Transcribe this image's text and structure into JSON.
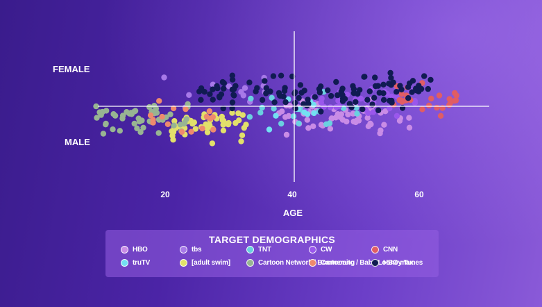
{
  "chart_data": {
    "type": "scatter",
    "title": "",
    "xlabel": "AGE",
    "y_categories": [
      "FEMALE",
      "MALE"
    ],
    "xlim": [
      7,
      69
    ],
    "x_ticks": [
      20,
      40,
      60
    ],
    "grid": false,
    "legend_position": "bottom-center",
    "legend_title": "TARGET DEMOGRAPHICS",
    "series": [
      {
        "name": "HBO",
        "color": "#c98ce6",
        "x_range": [
          37,
          59
        ],
        "y_center": -0.25,
        "count": 70
      },
      {
        "name": "tbs",
        "color": "#a779e8",
        "x_range": [
          18,
          36
        ],
        "y_center": 0.35,
        "count": 12
      },
      {
        "name": "TNT",
        "color": "#6ad0e0",
        "x_range": [
          33,
          52
        ],
        "y_center": -0.05,
        "count": 18
      },
      {
        "name": "CW",
        "color": "#9a57ec",
        "x_range": [
          42,
          60
        ],
        "y_center": 0.15,
        "count": 35
      },
      {
        "name": "CNN",
        "color": "#e05d64",
        "x_range": [
          55,
          66
        ],
        "y_center": 0.1,
        "count": 26
      },
      {
        "name": "truTV",
        "color": "#73e0f2",
        "x_range": [
          34,
          44
        ],
        "y_center": -0.1,
        "count": 10
      },
      {
        "name": "[adult swim]",
        "color": "#e2e06a",
        "x_range": [
          21,
          33
        ],
        "y_center": -0.4,
        "count": 50
      },
      {
        "name": "Cartoon Network / Boomerang",
        "color": "#98b592",
        "x_range": [
          9,
          24
        ],
        "y_center": -0.3,
        "count": 50
      },
      {
        "name": "Cartoonito / Baby Looney Tunes",
        "color": "#ee8a6e",
        "x_range": [
          16,
          28
        ],
        "y_center": -0.3,
        "count": 16
      },
      {
        "name": "HBO max",
        "color": "#101b52",
        "x_range": [
          24,
          62
        ],
        "y_center": 0.35,
        "count": 120
      }
    ]
  },
  "labels": {
    "female": "FEMALE",
    "male": "MALE",
    "x_axis": "AGE",
    "tick_20": "20",
    "tick_40": "40",
    "tick_60": "60"
  },
  "legend": {
    "title": "TARGET DEMOGRAPHICS",
    "items": [
      {
        "name": "HBO",
        "color": "#c98ce6"
      },
      {
        "name": "tbs",
        "color": "#a779e8"
      },
      {
        "name": "TNT",
        "color": "#6ad0e0"
      },
      {
        "name": "CW",
        "color": "#9a57ec"
      },
      {
        "name": "CNN",
        "color": "#e05d64"
      },
      {
        "name": "truTV",
        "color": "#73e0f2"
      },
      {
        "name": "[adult swim]",
        "color": "#e2e06a"
      },
      {
        "name": "Cartoon Network / Boomerang",
        "color": "#98b592"
      },
      {
        "name": "Cartoonito / Baby Looney Tunes",
        "color": "#ee8a6e"
      },
      {
        "name": "HBO max",
        "color": "#101b52"
      }
    ]
  }
}
